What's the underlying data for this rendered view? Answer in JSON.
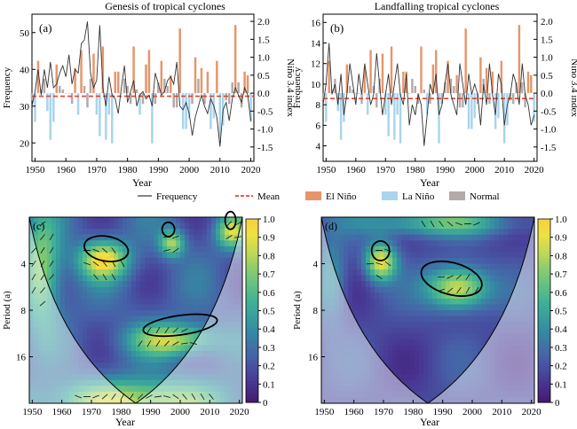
{
  "figure": {
    "legend": [
      {
        "key": "frequency",
        "label": "Frequency",
        "color": "#333333",
        "style": "line"
      },
      {
        "key": "mean",
        "label": "Mean",
        "color": "#e8412c",
        "style": "dash"
      },
      {
        "key": "elnino",
        "label": "El Niño",
        "color": "#e8956a",
        "style": "box"
      },
      {
        "key": "lanina",
        "label": "La Niño",
        "color": "#a9d4ec",
        "style": "box"
      },
      {
        "key": "normal",
        "label": "Normal",
        "color": "#b3aaaa",
        "style": "box"
      }
    ],
    "colors": {
      "elnino": "#e8956a",
      "lanina": "#a9d4ec",
      "normal": "#b3aaaa",
      "frequency": "#333333",
      "mean": "#e8412c"
    },
    "colorbar": {
      "ticks": [
        "1.0",
        "0.9",
        "0.8",
        "0.7",
        "0.6",
        "0.5",
        "0.4",
        "0.3",
        "0.2",
        "0.1",
        "0"
      ]
    }
  },
  "chart_data": [
    {
      "type": "bar",
      "panel": "(a)",
      "title": "Genesis of tropical cyclones",
      "xlabel": "Year",
      "ylabel": "Frequency",
      "y2label": "Niño 3.4 index",
      "xlim": [
        1949,
        2021
      ],
      "ylim": [
        15,
        55
      ],
      "y2lim": [
        -1.9,
        2.2
      ],
      "xticks": [
        1950,
        1960,
        1970,
        1980,
        1990,
        2000,
        2010,
        2020
      ],
      "yticks": [
        20,
        30,
        40,
        50
      ],
      "y2ticks": [
        -1.5,
        -1.0,
        -0.5,
        0,
        0.5,
        1.0,
        1.5,
        2.0
      ],
      "mean_frequency": 32.7,
      "years": [
        1949,
        1950,
        1951,
        1952,
        1953,
        1954,
        1955,
        1956,
        1957,
        1958,
        1959,
        1960,
        1961,
        1962,
        1963,
        1964,
        1965,
        1966,
        1967,
        1968,
        1969,
        1970,
        1971,
        1972,
        1973,
        1974,
        1975,
        1976,
        1977,
        1978,
        1979,
        1980,
        1981,
        1982,
        1983,
        1984,
        1985,
        1986,
        1987,
        1988,
        1989,
        1990,
        1991,
        1992,
        1993,
        1994,
        1995,
        1996,
        1997,
        1998,
        1999,
        2000,
        2001,
        2002,
        2003,
        2004,
        2005,
        2006,
        2007,
        2008,
        2009,
        2010,
        2011,
        2012,
        2013,
        2014,
        2015,
        2016,
        2017,
        2018,
        2019,
        2020
      ],
      "frequency": [
        30,
        34,
        40,
        33,
        40,
        35,
        42,
        35,
        36,
        39,
        41,
        38,
        44,
        36,
        40,
        39,
        47,
        48,
        53,
        39,
        35,
        37,
        52,
        35,
        30,
        38,
        33,
        32,
        28,
        35,
        41,
        31,
        34,
        37,
        30,
        33,
        34,
        32,
        33,
        30,
        39,
        36,
        33,
        34,
        37,
        38,
        36,
        42,
        30,
        29,
        31,
        28,
        22,
        27,
        30,
        33,
        30,
        28,
        32,
        30,
        27,
        19,
        29,
        31,
        26,
        32,
        35,
        33,
        31,
        35,
        33,
        26
      ],
      "nino34": [
        -0.2,
        -0.8,
        0.9,
        0.1,
        0.4,
        -0.5,
        -1.3,
        -0.8,
        0.8,
        0.2,
        0.1,
        0.0,
        0.0,
        -0.3,
        0.7,
        -0.6,
        1.2,
        0.2,
        -0.4,
        0.4,
        1.1,
        -0.6,
        -1.2,
        1.3,
        -1.3,
        -0.6,
        -1.4,
        0.6,
        0.6,
        0.0,
        0.4,
        0.2,
        -0.3,
        1.3,
        0.1,
        -0.6,
        -0.3,
        0.8,
        1.2,
        -1.4,
        -0.3,
        0.3,
        0.9,
        0.4,
        0.2,
        0.5,
        -0.4,
        -0.4,
        1.8,
        -1.0,
        -1.0,
        -0.7,
        -0.3,
        1.0,
        0.4,
        0.7,
        -0.3,
        0.6,
        -1.0,
        -0.7,
        0.9,
        -1.4,
        -0.9,
        -0.2,
        -0.3,
        0.3,
        1.9,
        0.3,
        -0.4,
        0.6,
        0.5,
        -0.8
      ]
    },
    {
      "type": "bar",
      "panel": "(b)",
      "title": "Landfalling tropical cyclones",
      "xlabel": "Year",
      "ylabel": "Frequency",
      "y2label": "Niño 3.4 index",
      "xlim": [
        1949,
        2021
      ],
      "ylim": [
        2.5,
        16.8
      ],
      "y2lim": [
        -1.9,
        2.2
      ],
      "xticks": [
        1950,
        1960,
        1970,
        1980,
        1990,
        2000,
        2010,
        2020
      ],
      "yticks": [
        4,
        6,
        8,
        10,
        12,
        14,
        16
      ],
      "y2ticks": [
        -1.5,
        -1.0,
        -0.5,
        0,
        0.5,
        1.0,
        1.5,
        2.0
      ],
      "mean_frequency": 8.6,
      "years": [
        1949,
        1950,
        1951,
        1952,
        1953,
        1954,
        1955,
        1956,
        1957,
        1958,
        1959,
        1960,
        1961,
        1962,
        1963,
        1964,
        1965,
        1966,
        1967,
        1968,
        1969,
        1970,
        1971,
        1972,
        1973,
        1974,
        1975,
        1976,
        1977,
        1978,
        1979,
        1980,
        1981,
        1982,
        1983,
        1984,
        1985,
        1986,
        1987,
        1988,
        1989,
        1990,
        1991,
        1992,
        1993,
        1994,
        1995,
        1996,
        1997,
        1998,
        1999,
        2000,
        2001,
        2002,
        2003,
        2004,
        2005,
        2006,
        2007,
        2008,
        2009,
        2010,
        2011,
        2012,
        2013,
        2014,
        2015,
        2016,
        2017,
        2018,
        2019,
        2020
      ],
      "frequency": [
        8,
        10,
        14,
        9,
        10,
        8,
        11,
        7,
        9,
        12,
        10,
        8,
        11,
        9,
        12,
        10,
        8,
        9,
        13,
        10,
        7,
        9,
        11,
        8,
        10,
        12,
        9,
        8,
        11,
        6,
        8,
        7,
        9,
        8,
        4,
        7,
        10,
        9,
        11,
        7,
        8,
        10,
        12,
        9,
        8,
        7,
        12,
        10,
        8,
        11,
        9,
        10,
        9,
        6,
        10,
        8,
        12,
        9,
        7,
        11,
        10,
        6,
        8,
        9,
        11,
        10,
        8,
        12,
        9,
        8,
        6,
        7
      ],
      "nino34": [
        -0.2,
        -0.8,
        0.9,
        0.1,
        0.4,
        -0.5,
        -1.3,
        -0.8,
        0.8,
        0.2,
        0.1,
        0.0,
        0.0,
        -0.3,
        0.7,
        -0.6,
        1.2,
        0.2,
        -0.4,
        0.4,
        1.1,
        -0.6,
        -1.2,
        1.3,
        -1.3,
        -0.6,
        -1.4,
        0.6,
        0.6,
        0.0,
        0.4,
        0.2,
        -0.3,
        1.3,
        0.1,
        -0.6,
        -0.3,
        0.8,
        1.2,
        -1.4,
        -0.3,
        0.3,
        0.9,
        0.4,
        0.2,
        0.5,
        -0.4,
        -0.4,
        1.8,
        -1.0,
        -1.0,
        -0.7,
        -0.3,
        1.0,
        0.4,
        0.7,
        -0.3,
        0.6,
        -1.0,
        -0.7,
        0.9,
        -1.4,
        -0.9,
        -0.2,
        -0.3,
        0.3,
        1.9,
        0.3,
        -0.4,
        0.6,
        0.5,
        -0.8
      ]
    },
    {
      "type": "heatmap",
      "panel": "(c)",
      "title": "",
      "xlabel": "Year",
      "ylabel": "Period (a)",
      "xlim": [
        1949,
        2021
      ],
      "period_ticks": [
        4,
        8,
        16
      ],
      "xticks": [
        1950,
        1960,
        1970,
        1980,
        1990,
        2000,
        2010,
        2020
      ],
      "colorbar_range": [
        0,
        1
      ],
      "significant_regions": [
        {
          "year_center": 1975,
          "period_center": 3.2
        },
        {
          "year_center": 1996,
          "period_center": 2.4
        },
        {
          "year_center": 2017,
          "period_center": 2.1
        },
        {
          "year_center": 2000,
          "period_center": 10
        }
      ]
    },
    {
      "type": "heatmap",
      "panel": "(d)",
      "title": "",
      "xlabel": "Year",
      "ylabel": "Period (a)",
      "xlim": [
        1949,
        2021
      ],
      "period_ticks": [
        4,
        8,
        16
      ],
      "xticks": [
        1950,
        1960,
        1970,
        1980,
        1990,
        2000,
        2010,
        2020
      ],
      "colorbar_range": [
        0,
        1
      ],
      "significant_regions": [
        {
          "year_center": 1969,
          "period_center": 3.3
        },
        {
          "year_center": 1993,
          "period_center": 5.0
        }
      ]
    }
  ]
}
